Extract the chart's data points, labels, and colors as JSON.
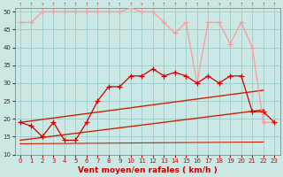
{
  "title": "",
  "xlabel": "Vent moyen/en rafales ( km/h )",
  "bg_color": "#cce8e4",
  "grid_color": "#99cccc",
  "xlim_min": -0.5,
  "xlim_max": 23.5,
  "ylim_min": 10,
  "ylim_max": 51,
  "yticks": [
    10,
    15,
    20,
    25,
    30,
    35,
    40,
    45,
    50
  ],
  "xticks": [
    0,
    1,
    2,
    3,
    4,
    5,
    6,
    7,
    8,
    9,
    10,
    11,
    12,
    13,
    14,
    15,
    16,
    17,
    18,
    19,
    20,
    21,
    22,
    23
  ],
  "hours": [
    0,
    1,
    2,
    3,
    4,
    5,
    6,
    7,
    8,
    9,
    10,
    11,
    12,
    13,
    14,
    15,
    16,
    17,
    18,
    19,
    20,
    21,
    22,
    23
  ],
  "rafales": [
    47,
    47,
    50,
    50,
    50,
    50,
    50,
    50,
    50,
    50,
    51,
    50,
    50,
    47,
    44,
    47,
    30,
    47,
    47,
    41,
    47,
    40,
    19,
    19
  ],
  "moyen": [
    19,
    18,
    15,
    19,
    14,
    14,
    19,
    25,
    29,
    29,
    32,
    32,
    34,
    32,
    33,
    32,
    30,
    32,
    30,
    32,
    32,
    22,
    22,
    19
  ],
  "trend1_x": [
    0,
    22
  ],
  "trend1_y": [
    19,
    28
  ],
  "trend2_x": [
    0,
    22
  ],
  "trend2_y": [
    14,
    22
  ],
  "trend3_x": [
    0,
    22
  ],
  "trend3_y": [
    13,
    13
  ],
  "color_rafales": "#ff9999",
  "color_moyen": "#cc0000",
  "color_trend": "#cc2200"
}
